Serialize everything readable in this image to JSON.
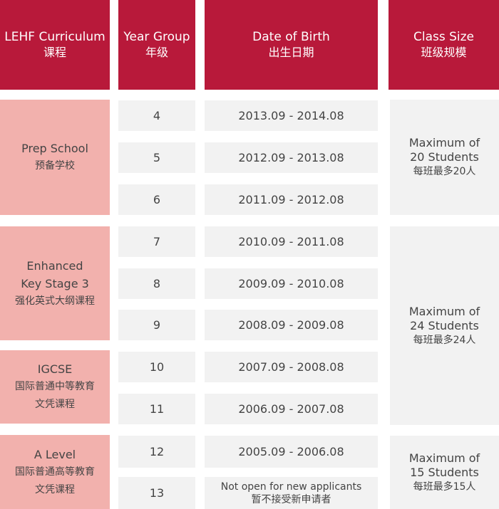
{
  "header": {
    "curriculum": {
      "en": "LEHF Curriculum",
      "zh": "课程"
    },
    "year_group": {
      "en": "Year Group",
      "zh": "年级"
    },
    "dob": {
      "en": "Date of Birth",
      "zh": "出生日期"
    },
    "class_size": {
      "en": "Class Size",
      "zh": "班级规模"
    }
  },
  "curricula": [
    {
      "lines": [
        "Prep School"
      ],
      "zh": "预备学校"
    },
    {
      "lines": [
        "Enhanced",
        "Key Stage 3"
      ],
      "zh": "强化英式大纲课程"
    },
    {
      "lines": [
        "IGCSE"
      ],
      "zh": "国际普通中等教育\n文凭课程"
    },
    {
      "lines": [
        "A Level"
      ],
      "zh": "国际普通高等教育\n文凭课程"
    }
  ],
  "rows": [
    {
      "year": "4",
      "dob": "2013.09 - 2014.08"
    },
    {
      "year": "5",
      "dob": "2012.09 - 2013.08"
    },
    {
      "year": "6",
      "dob": "2011.09 - 2012.08"
    },
    {
      "year": "7",
      "dob": "2010.09 - 2011.08"
    },
    {
      "year": "8",
      "dob": "2009.09 - 2010.08"
    },
    {
      "year": "9",
      "dob": "2008.09 - 2009.08"
    },
    {
      "year": "10",
      "dob": "2007.09 - 2008.08"
    },
    {
      "year": "11",
      "dob": "2006.09 - 2007.08"
    },
    {
      "year": "12",
      "dob": "2005.09 - 2006.08"
    },
    {
      "year": "13",
      "dob": "Not open for new applicants",
      "dob_zh": "暂不接受新申请者"
    }
  ],
  "class_sizes": [
    {
      "line1": "Maximum of",
      "line2": "20 Students",
      "zh": "每班最多20人"
    },
    {
      "line1": "Maximum of",
      "line2": "24 Students",
      "zh": "每班最多24人"
    },
    {
      "line1": "Maximum of",
      "line2": "15 Students",
      "zh": "每班最多15人"
    }
  ],
  "colors": {
    "header": "#b8193a",
    "curriculum": "#f2b1ad",
    "cell": "#f2f2f2"
  }
}
